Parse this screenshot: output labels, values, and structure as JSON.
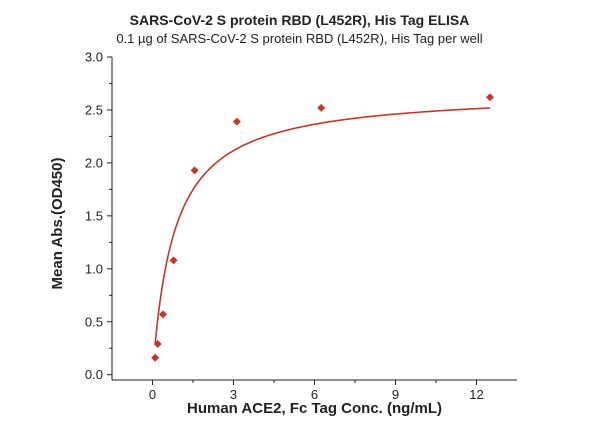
{
  "chart_data": {
    "type": "scatter",
    "title": "SARS-CoV-2 S protein RBD (L452R), His Tag ELISA",
    "subtitle": "0.1 µg of SARS-CoV-2 S protein RBD (L452R), His Tag per well",
    "xlabel": "Human ACE2, Fc Tag Conc. (ng/mL)",
    "ylabel": "Mean Abs.(OD450)",
    "xlim": [
      -1.5,
      13.5
    ],
    "ylim": [
      -0.05,
      3.0
    ],
    "xticks": [
      0,
      3,
      6,
      9,
      12
    ],
    "yticks": [
      0.0,
      0.5,
      1.0,
      1.5,
      2.0,
      2.5,
      3.0
    ],
    "ytick_labels": [
      "0.0",
      "0.5",
      "1.0",
      "1.5",
      "2.0",
      "2.5",
      "3.0"
    ],
    "grid": false,
    "series": [
      {
        "marker": "diamond",
        "color": "#c0392b",
        "x": [
          0.098,
          0.195,
          0.39,
          0.78,
          1.56,
          3.125,
          6.25,
          12.5
        ],
        "y": [
          0.16,
          0.29,
          0.57,
          1.08,
          1.93,
          2.39,
          2.52,
          2.62
        ]
      }
    ],
    "fit_curve": {
      "color": "#c0392b",
      "ymax": 2.68,
      "ec50": 0.8,
      "hill": 1.0
    }
  }
}
